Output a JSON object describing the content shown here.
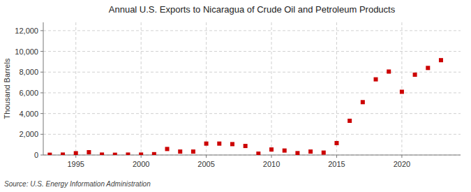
{
  "chart_data": {
    "type": "scatter",
    "title": "Annual U.S. Exports to Nicaragua of Crude Oil and Petroleum Products",
    "y_label": "Thousand Barrels",
    "annotations": [
      "Source: U.S. Energy Information Administration"
    ],
    "x": [
      1993,
      1994,
      1995,
      1996,
      1997,
      1998,
      1999,
      2000,
      2001,
      2002,
      2003,
      2004,
      2005,
      2006,
      2007,
      2008,
      2009,
      2010,
      2011,
      2012,
      2013,
      2014,
      2015,
      2016,
      2017,
      2018,
      2019,
      2020,
      2021,
      2022,
      2023
    ],
    "values": [
      25,
      40,
      170,
      270,
      40,
      25,
      40,
      40,
      80,
      580,
      330,
      330,
      1100,
      1100,
      1050,
      870,
      130,
      530,
      430,
      180,
      330,
      230,
      1150,
      3300,
      5100,
      7300,
      8050,
      6100,
      7750,
      8400,
      9150
    ],
    "color": "#cc0000",
    "marker": "square",
    "xlim": [
      1992.5,
      2024.5
    ],
    "ylim": [
      0,
      12800
    ],
    "xticks": [
      1995,
      2000,
      2005,
      2010,
      2015,
      2020
    ],
    "yticks": [
      0,
      {
        "value": 2000,
        "label": "2,000"
      },
      {
        "value": 4000,
        "label": "4,000"
      },
      {
        "value": 6000,
        "label": "6,000"
      },
      {
        "value": 8000,
        "label": "8,000"
      },
      {
        "value": 10000,
        "label": "10,000"
      },
      {
        "value": 12000,
        "label": "12,000"
      }
    ],
    "grid": true
  }
}
